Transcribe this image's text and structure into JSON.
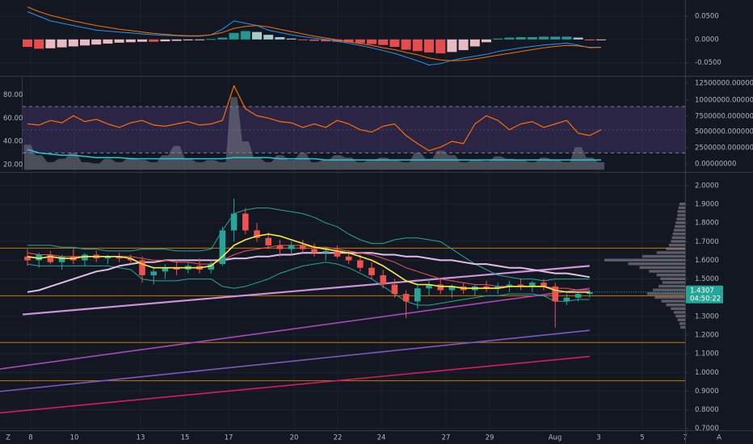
{
  "colors": {
    "background": "#131722",
    "grid": "#1e2230",
    "separator": "#363a45",
    "axis_text": "#b2b5be",
    "up": "#26a69a",
    "down": "#ef5350",
    "macd_line": "#2196f3",
    "signal_line": "#ff6d00",
    "hist_up_strong": "#26a69a",
    "hist_up_weak": "#b2dfdb",
    "hist_down_strong": "#ff5252",
    "hist_down_weak": "#ffcdd2",
    "rsi_line": "#ff6d00",
    "rsi_band": "#7e57c2",
    "volume_area": "#787b86",
    "volume_ma": "#26c6da",
    "bb_band": "#26a69a",
    "ma_fast": "#ffeb3b",
    "ma_mid": "#ef5350",
    "ma_slow": "#e1bee7",
    "ma_long": "#ce93d8",
    "trend1": "#ab47bc",
    "trend2": "#7e57c2",
    "trend3": "#d81b60",
    "hline": "#ff9800",
    "profile": "#9598a1",
    "badge_bg": "#26a69a"
  },
  "icons": {
    "bottom_left": "timezone-z-icon",
    "bottom_right": "auto-scale-a-icon"
  },
  "axis_labels": {
    "macd": [
      "0.0500",
      "0.0000",
      "-0.0500"
    ],
    "rsi_left": [
      "80.00",
      "60.00",
      "40.00",
      "20.00"
    ],
    "volume_right": [
      "12500000.00000000",
      "10000000.00000000",
      "7500000.00000000",
      "5000000.00000000",
      "2500000.00000000",
      "0.00000000"
    ],
    "price": [
      "2.0000",
      "1.9000",
      "1.8000",
      "1.7000",
      "1.6000",
      "1.5000",
      "1.3000",
      "1.2000",
      "1.1000",
      "1.0000",
      "0.9000",
      "0.8000",
      "0.7000"
    ],
    "time": [
      "8",
      "10",
      "13",
      "15",
      "17",
      "20",
      "22",
      "24",
      "27",
      "29",
      "Aug",
      "3",
      "5",
      "7"
    ]
  },
  "last_price_badge": {
    "price": "1.4307",
    "countdown": "04:50:22"
  },
  "chart_data": [
    {
      "type": "bar",
      "panel": "macd",
      "ylim": [
        -0.075,
        0.078
      ],
      "x": [
        "Jul 8",
        "Jul 8",
        "Jul 9",
        "Jul 9",
        "Jul 10",
        "Jul 10",
        "Jul 11",
        "Jul 11",
        "Jul 12",
        "Jul 12",
        "Jul 13",
        "Jul 13",
        "Jul 14",
        "Jul 14",
        "Jul 15",
        "Jul 15",
        "Jul 16",
        "Jul 16",
        "Jul 17",
        "Jul 17",
        "Jul 18",
        "Jul 18",
        "Jul 19",
        "Jul 19",
        "Jul 20",
        "Jul 20",
        "Jul 21",
        "Jul 21",
        "Jul 22",
        "Jul 22",
        "Jul 23",
        "Jul 23",
        "Jul 24",
        "Jul 24",
        "Jul 25",
        "Jul 25",
        "Jul 26",
        "Jul 26",
        "Jul 27",
        "Jul 27",
        "Jul 28",
        "Jul 28",
        "Jul 29",
        "Jul 29",
        "Jul 30",
        "Jul 30",
        "Jul 31",
        "Jul 31",
        "Aug 1",
        "Aug 1",
        "Aug 2"
      ],
      "series": [
        {
          "kind": "histogram",
          "values": [
            -0.016,
            -0.02,
            -0.019,
            -0.017,
            -0.015,
            -0.013,
            -0.011,
            -0.009,
            -0.007,
            -0.006,
            -0.005,
            -0.005,
            -0.004,
            -0.003,
            -0.002,
            -0.001,
            0.001,
            0.004,
            0.014,
            0.018,
            0.016,
            0.01,
            0.005,
            0.002,
            -0.001,
            -0.003,
            -0.004,
            -0.005,
            -0.006,
            -0.008,
            -0.01,
            -0.012,
            -0.016,
            -0.022,
            -0.025,
            -0.028,
            -0.03,
            -0.027,
            -0.023,
            -0.015,
            -0.006,
            0.002,
            0.004,
            0.005,
            0.005,
            0.006,
            0.006,
            0.006,
            0.004,
            -0.002,
            -0.001
          ]
        },
        {
          "kind": "line",
          "name": "",
          "values": [
            0.06,
            0.05,
            0.04,
            0.035,
            0.03,
            0.025,
            0.02,
            0.018,
            0.016,
            0.014,
            0.012,
            0.01,
            0.009,
            0.008,
            0.007,
            0.007,
            0.01,
            0.022,
            0.04,
            0.035,
            0.03,
            0.02,
            0.015,
            0.01,
            0.006,
            0.003,
            0.0,
            -0.004,
            -0.008,
            -0.013,
            -0.018,
            -0.024,
            -0.03,
            -0.038,
            -0.046,
            -0.055,
            -0.052,
            -0.045,
            -0.04,
            -0.036,
            -0.032,
            -0.026,
            -0.022,
            -0.018,
            -0.015,
            -0.012,
            -0.01,
            -0.008,
            -0.012,
            -0.018,
            -0.017
          ]
        },
        {
          "kind": "line",
          "name": "",
          "values": [
            0.07,
            0.06,
            0.052,
            0.046,
            0.04,
            0.035,
            0.03,
            0.026,
            0.022,
            0.019,
            0.016,
            0.013,
            0.011,
            0.009,
            0.008,
            0.008,
            0.01,
            0.015,
            0.024,
            0.028,
            0.03,
            0.027,
            0.022,
            0.017,
            0.012,
            0.007,
            0.003,
            -0.001,
            -0.005,
            -0.009,
            -0.013,
            -0.018,
            -0.022,
            -0.028,
            -0.033,
            -0.04,
            -0.044,
            -0.046,
            -0.045,
            -0.042,
            -0.038,
            -0.034,
            -0.03,
            -0.026,
            -0.022,
            -0.018,
            -0.015,
            -0.013,
            -0.014,
            -0.017,
            -0.017
          ]
        }
      ]
    },
    {
      "type": "line",
      "panel": "rsi-volume",
      "ylim": [
        15,
        95
      ],
      "bands": [
        70,
        30
      ],
      "rsi": [
        55,
        54,
        58,
        56,
        62,
        57,
        59,
        55,
        52,
        56,
        58,
        54,
        53,
        55,
        57,
        54,
        55,
        58,
        88,
        68,
        62,
        60,
        57,
        56,
        52,
        55,
        52,
        58,
        55,
        50,
        48,
        53,
        55,
        45,
        38,
        32,
        35,
        40,
        38,
        55,
        62,
        58,
        50,
        55,
        57,
        52,
        55,
        58,
        47,
        45,
        50
      ],
      "volume_ma": [
        33,
        30,
        29,
        28,
        28,
        27,
        26,
        26,
        26,
        25,
        25,
        25,
        25,
        25,
        25,
        25,
        25,
        25,
        26,
        26,
        26,
        26,
        25,
        25,
        25,
        25,
        24,
        24,
        24,
        24,
        24,
        24,
        24,
        24,
        24,
        24,
        24,
        24,
        24,
        24,
        24,
        24,
        24,
        24,
        24,
        24,
        24,
        24,
        24,
        24,
        24
      ],
      "volume": [
        37,
        28,
        22,
        25,
        30,
        22,
        21,
        25,
        22,
        26,
        24,
        22,
        28,
        36,
        25,
        22,
        24,
        22,
        78,
        40,
        26,
        22,
        28,
        24,
        30,
        22,
        24,
        28,
        26,
        22,
        24,
        26,
        24,
        22,
        30,
        25,
        32,
        28,
        22,
        24,
        23,
        27,
        25,
        24,
        22,
        26,
        24,
        22,
        35,
        26,
        22
      ]
    },
    {
      "type": "candlestick",
      "panel": "price",
      "ylim": [
        0.69,
        2.06
      ],
      "ohlc": [
        [
          1.62,
          1.66,
          1.57,
          1.6
        ],
        [
          1.6,
          1.64,
          1.56,
          1.63
        ],
        [
          1.63,
          1.65,
          1.58,
          1.59
        ],
        [
          1.59,
          1.63,
          1.55,
          1.62
        ],
        [
          1.62,
          1.66,
          1.58,
          1.6
        ],
        [
          1.6,
          1.64,
          1.57,
          1.63
        ],
        [
          1.63,
          1.65,
          1.59,
          1.61
        ],
        [
          1.61,
          1.63,
          1.58,
          1.62
        ],
        [
          1.62,
          1.64,
          1.59,
          1.61
        ],
        [
          1.61,
          1.63,
          1.58,
          1.6
        ],
        [
          1.6,
          1.62,
          1.48,
          1.52
        ],
        [
          1.52,
          1.56,
          1.47,
          1.54
        ],
        [
          1.54,
          1.58,
          1.5,
          1.56
        ],
        [
          1.56,
          1.6,
          1.52,
          1.55
        ],
        [
          1.55,
          1.59,
          1.53,
          1.57
        ],
        [
          1.57,
          1.61,
          1.53,
          1.55
        ],
        [
          1.55,
          1.6,
          1.53,
          1.58
        ],
        [
          1.58,
          1.78,
          1.57,
          1.76
        ],
        [
          1.76,
          1.93,
          1.7,
          1.85
        ],
        [
          1.85,
          1.88,
          1.74,
          1.76
        ],
        [
          1.76,
          1.8,
          1.7,
          1.72
        ],
        [
          1.72,
          1.75,
          1.66,
          1.68
        ],
        [
          1.68,
          1.71,
          1.62,
          1.66
        ],
        [
          1.66,
          1.7,
          1.63,
          1.68
        ],
        [
          1.68,
          1.71,
          1.64,
          1.66
        ],
        [
          1.66,
          1.69,
          1.62,
          1.64
        ],
        [
          1.64,
          1.67,
          1.6,
          1.65
        ],
        [
          1.65,
          1.68,
          1.61,
          1.62
        ],
        [
          1.62,
          1.65,
          1.58,
          1.6
        ],
        [
          1.6,
          1.63,
          1.54,
          1.56
        ],
        [
          1.56,
          1.59,
          1.5,
          1.52
        ],
        [
          1.52,
          1.55,
          1.45,
          1.47
        ],
        [
          1.47,
          1.5,
          1.4,
          1.42
        ],
        [
          1.42,
          1.44,
          1.29,
          1.38
        ],
        [
          1.38,
          1.47,
          1.34,
          1.45
        ],
        [
          1.45,
          1.5,
          1.41,
          1.47
        ],
        [
          1.47,
          1.5,
          1.42,
          1.44
        ],
        [
          1.44,
          1.47,
          1.4,
          1.46
        ],
        [
          1.46,
          1.48,
          1.42,
          1.44
        ],
        [
          1.44,
          1.47,
          1.41,
          1.46
        ],
        [
          1.46,
          1.49,
          1.43,
          1.45
        ],
        [
          1.45,
          1.48,
          1.42,
          1.46
        ],
        [
          1.46,
          1.49,
          1.43,
          1.47
        ],
        [
          1.47,
          1.5,
          1.44,
          1.46
        ],
        [
          1.46,
          1.49,
          1.43,
          1.48
        ],
        [
          1.48,
          1.5,
          1.44,
          1.46
        ],
        [
          1.46,
          1.48,
          1.24,
          1.38
        ],
        [
          1.38,
          1.42,
          1.36,
          1.4
        ],
        [
          1.4,
          1.43,
          1.38,
          1.42
        ],
        [
          1.42,
          1.44,
          1.4,
          1.43
        ]
      ],
      "bb_upper": [
        1.68,
        1.68,
        1.68,
        1.67,
        1.67,
        1.66,
        1.66,
        1.65,
        1.65,
        1.65,
        1.66,
        1.66,
        1.66,
        1.65,
        1.65,
        1.65,
        1.66,
        1.76,
        1.85,
        1.87,
        1.88,
        1.88,
        1.87,
        1.86,
        1.85,
        1.83,
        1.8,
        1.78,
        1.74,
        1.71,
        1.69,
        1.69,
        1.71,
        1.72,
        1.72,
        1.71,
        1.7,
        1.66,
        1.62,
        1.58,
        1.55,
        1.52,
        1.51,
        1.5,
        1.5,
        1.49,
        1.5,
        1.5,
        1.5,
        1.5
      ],
      "bb_lower": [
        1.58,
        1.57,
        1.57,
        1.57,
        1.57,
        1.57,
        1.57,
        1.57,
        1.56,
        1.55,
        1.5,
        1.49,
        1.49,
        1.49,
        1.5,
        1.5,
        1.5,
        1.46,
        1.45,
        1.46,
        1.48,
        1.5,
        1.53,
        1.55,
        1.57,
        1.58,
        1.59,
        1.58,
        1.56,
        1.53,
        1.5,
        1.46,
        1.42,
        1.38,
        1.36,
        1.36,
        1.37,
        1.38,
        1.39,
        1.4,
        1.41,
        1.41,
        1.42,
        1.42,
        1.42,
        1.41,
        1.38,
        1.38,
        1.39,
        1.39
      ],
      "ma_fast": [
        1.62,
        1.61,
        1.62,
        1.61,
        1.61,
        1.62,
        1.62,
        1.62,
        1.62,
        1.61,
        1.58,
        1.56,
        1.56,
        1.56,
        1.56,
        1.56,
        1.57,
        1.62,
        1.68,
        1.71,
        1.73,
        1.74,
        1.73,
        1.71,
        1.69,
        1.67,
        1.66,
        1.65,
        1.64,
        1.62,
        1.6,
        1.57,
        1.53,
        1.49,
        1.47,
        1.47,
        1.46,
        1.46,
        1.45,
        1.45,
        1.45,
        1.45,
        1.46,
        1.46,
        1.46,
        1.46,
        1.44,
        1.43,
        1.43,
        1.43
      ],
      "ma_mid": [
        1.64,
        1.63,
        1.63,
        1.62,
        1.62,
        1.62,
        1.62,
        1.62,
        1.62,
        1.62,
        1.61,
        1.6,
        1.6,
        1.59,
        1.59,
        1.58,
        1.58,
        1.6,
        1.63,
        1.65,
        1.66,
        1.67,
        1.68,
        1.68,
        1.68,
        1.67,
        1.67,
        1.66,
        1.65,
        1.64,
        1.63,
        1.61,
        1.59,
        1.56,
        1.54,
        1.52,
        1.5,
        1.49,
        1.48,
        1.47,
        1.47,
        1.46,
        1.46,
        1.46,
        1.46,
        1.46,
        1.45,
        1.45,
        1.44,
        1.44
      ],
      "ma_slow": [
        1.43,
        1.44,
        1.46,
        1.48,
        1.5,
        1.52,
        1.54,
        1.55,
        1.57,
        1.58,
        1.59,
        1.59,
        1.6,
        1.6,
        1.6,
        1.6,
        1.6,
        1.6,
        1.61,
        1.61,
        1.62,
        1.62,
        1.63,
        1.63,
        1.64,
        1.64,
        1.64,
        1.64,
        1.64,
        1.64,
        1.64,
        1.63,
        1.63,
        1.62,
        1.62,
        1.61,
        1.6,
        1.6,
        1.59,
        1.58,
        1.58,
        1.57,
        1.56,
        1.56,
        1.55,
        1.54,
        1.53,
        1.53,
        1.52,
        1.51
      ],
      "ma_long_linear": [
        [
          0,
          1.31
        ],
        [
          49,
          1.57
        ]
      ],
      "trendlines": [
        {
          "from": [
            0,
            1.03
          ],
          "to": [
            49,
            1.45
          ]
        },
        {
          "from": [
            0,
            0.91
          ],
          "to": [
            49,
            1.225
          ]
        },
        {
          "from": [
            0,
            0.795
          ],
          "to": [
            49,
            1.085
          ]
        }
      ],
      "hlines": [
        1.665,
        1.41,
        1.16,
        0.955
      ],
      "volume_profile": {
        "prices": [
          1.9,
          1.88,
          1.86,
          1.84,
          1.82,
          1.8,
          1.78,
          1.76,
          1.74,
          1.72,
          1.7,
          1.68,
          1.66,
          1.64,
          1.62,
          1.6,
          1.58,
          1.56,
          1.54,
          1.52,
          1.5,
          1.48,
          1.46,
          1.44,
          1.42,
          1.4,
          1.38,
          1.36,
          1.34,
          1.32,
          1.3,
          1.28,
          1.26,
          1.24
        ],
        "volumes": [
          6,
          7,
          8,
          8,
          9,
          10,
          11,
          12,
          13,
          14,
          15,
          17,
          20,
          30,
          45,
          85,
          60,
          48,
          38,
          30,
          26,
          24,
          28,
          34,
          40,
          32,
          25,
          20,
          15,
          12,
          10,
          8,
          6,
          5
        ]
      }
    }
  ]
}
